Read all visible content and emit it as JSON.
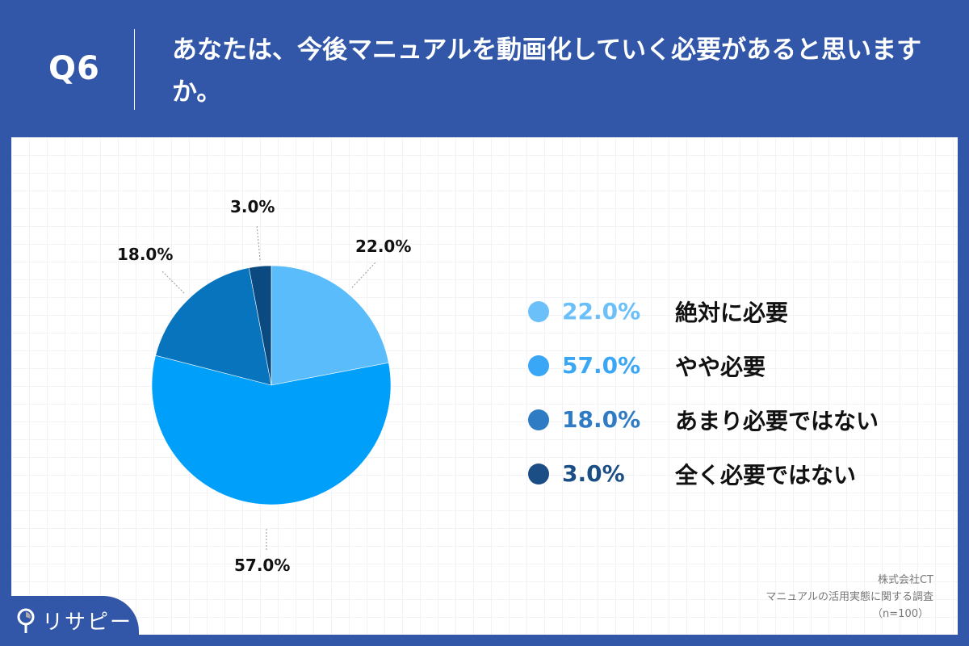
{
  "header": {
    "question_number": "Q6",
    "question_text": "あなたは、今後マニュアルを動画化していく必要があると思いますか。"
  },
  "colors": {
    "background": "#3257a8",
    "slice_1": "#5bbcfb",
    "slice_2": "#00a0fa",
    "slice_3": "#0874bd",
    "slice_4": "#0a4a80"
  },
  "chart_data": {
    "type": "pie",
    "title": "あなたは、今後マニュアルを動画化していく必要があると思いますか。",
    "categories": [
      "絶対に必要",
      "やや必要",
      "あまり必要ではない",
      "全く必要ではない"
    ],
    "values": [
      22.0,
      57.0,
      18.0,
      3.0
    ],
    "unit": "%",
    "start_angle": "12 o'clock, clockwise",
    "legend_position": "right",
    "n": 100
  },
  "pie_labels": [
    "22.0%",
    "57.0%",
    "18.0%",
    "3.0%"
  ],
  "legend": [
    {
      "pct": "22.0%",
      "label": "絶対に必要",
      "color": "#6cc0fa"
    },
    {
      "pct": "57.0%",
      "label": "やや必要",
      "color": "#3aa6f6"
    },
    {
      "pct": "18.0%",
      "label": "あまり必要ではない",
      "color": "#2f7cc4"
    },
    {
      "pct": "3.0%",
      "label": "全く必要ではない",
      "color": "#1c4e86"
    }
  ],
  "source": {
    "company": "株式会社CT",
    "survey": "マニュアルの活用実態に関する調査",
    "sample": "（n=100）"
  },
  "logo": {
    "text": "リサピー"
  }
}
